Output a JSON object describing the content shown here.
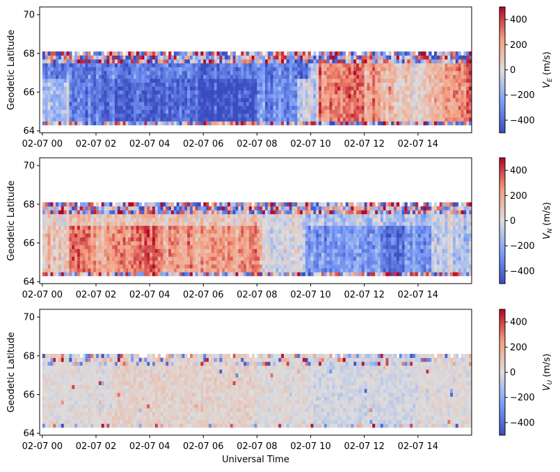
{
  "chart_data": [
    {
      "type": "heatmap",
      "panel": "top",
      "ylabel": "Geodetic Latitude",
      "xlabel": "",
      "x_ticks": [
        "02-07 00",
        "02-07 02",
        "02-07 04",
        "02-07 06",
        "02-07 08",
        "02-07 10",
        "02-07 12",
        "02-07 14"
      ],
      "x_range_hours": [
        -0.1,
        16.0
      ],
      "ylim": [
        63.9,
        70.4
      ],
      "y_ticks": [
        64,
        66,
        68,
        70
      ],
      "data_lat_range": [
        64.3,
        68.1
      ],
      "colorbar": {
        "label_main": "V",
        "label_sub": "E",
        "label_unit": " (m/s)",
        "range": [
          -500,
          500
        ],
        "ticks": [
          400,
          200,
          0,
          -200,
          -400
        ],
        "ticklabels": [
          "400",
          "200",
          "0",
          "−200",
          "−400"
        ],
        "colormap": "coolwarm"
      },
      "pattern_note": "Strongly negative (westward, blue) 02-09 UT; positive (red) 10-16 UT"
    },
    {
      "type": "heatmap",
      "panel": "middle",
      "ylabel": "Geodetic Latitude",
      "xlabel": "",
      "x_ticks": [
        "02-07 00",
        "02-07 02",
        "02-07 04",
        "02-07 06",
        "02-07 08",
        "02-07 10",
        "02-07 12",
        "02-07 14"
      ],
      "x_range_hours": [
        -0.1,
        16.0
      ],
      "ylim": [
        63.9,
        70.4
      ],
      "y_ticks": [
        64,
        66,
        68,
        70
      ],
      "data_lat_range": [
        64.3,
        68.1
      ],
      "colorbar": {
        "label_main": "V",
        "label_sub": "N",
        "label_unit": " (m/s)",
        "range": [
          -500,
          500
        ],
        "ticks": [
          400,
          200,
          0,
          -200,
          -400
        ],
        "ticklabels": [
          "400",
          "200",
          "0",
          "−200",
          "−400"
        ],
        "colormap": "coolwarm"
      },
      "pattern_note": "Positive (red) 01-08 UT; negative (blue) 10-14 UT"
    },
    {
      "type": "heatmap",
      "panel": "bottom",
      "ylabel": "Geodetic Latitude",
      "xlabel": "Universal Time",
      "x_ticks": [
        "02-07 00",
        "02-07 02",
        "02-07 04",
        "02-07 06",
        "02-07 08",
        "02-07 10",
        "02-07 12",
        "02-07 14"
      ],
      "x_range_hours": [
        -0.1,
        16.0
      ],
      "ylim": [
        63.9,
        70.4
      ],
      "y_ticks": [
        64,
        66,
        68,
        70
      ],
      "data_lat_range": [
        64.3,
        68.1
      ],
      "colorbar": {
        "label_main": "V",
        "label_sub": "U",
        "label_unit": " (m/s)",
        "range": [
          -500,
          500
        ],
        "ticks": [
          400,
          200,
          0,
          -200,
          -400
        ],
        "ticklabels": [
          "400",
          "200",
          "0",
          "−200",
          "−400"
        ],
        "colormap": "coolwarm"
      },
      "pattern_note": "Mostly near zero, noisy edges"
    }
  ]
}
